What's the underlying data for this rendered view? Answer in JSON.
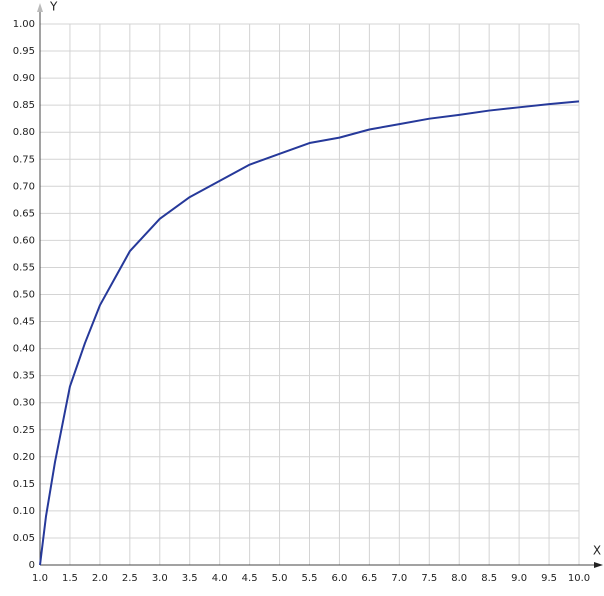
{
  "chart_data": {
    "type": "line",
    "x_label": "X",
    "y_label": "Y",
    "x": [
      1.0,
      1.1,
      1.25,
      1.5,
      1.75,
      2.0,
      2.25,
      2.5,
      3.0,
      3.5,
      4.0,
      4.5,
      5.0,
      5.5,
      6.0,
      6.5,
      7.0,
      7.5,
      8.0,
      8.5,
      9.0,
      9.5,
      10.0
    ],
    "values": [
      0,
      0.09,
      0.19,
      0.33,
      0.41,
      0.48,
      0.53,
      0.58,
      0.64,
      0.68,
      0.71,
      0.74,
      0.76,
      0.78,
      0.79,
      0.805,
      0.815,
      0.825,
      0.832,
      0.84,
      0.846,
      0.852,
      0.857
    ],
    "color": "#26399a",
    "grid": true,
    "xlim": [
      1.0,
      10.0
    ],
    "ylim": [
      0,
      1.0
    ],
    "xticks": [
      {
        "value": 1.0,
        "label": "1.0"
      },
      1.5,
      {
        "value": 2.0,
        "label": "2.0"
      },
      2.5,
      {
        "value": 3.0,
        "label": "3.0"
      },
      3.5,
      {
        "value": 4.0,
        "label": "4.0"
      },
      4.5,
      {
        "value": 5.0,
        "label": "5.0"
      },
      5.5,
      {
        "value": 6.0,
        "label": "6.0"
      },
      6.5,
      {
        "value": 7.0,
        "label": "7.0"
      },
      7.5,
      {
        "value": 8.0,
        "label": "8.0"
      },
      8.5,
      {
        "value": 9.0,
        "label": "9.0"
      },
      9.5,
      {
        "value": 10.0,
        "label": "10.0"
      }
    ],
    "yticks": [
      0,
      0.05,
      {
        "value": 0.1,
        "label": "0.10"
      },
      0.15,
      {
        "value": 0.2,
        "label": "0.20"
      },
      0.25,
      {
        "value": 0.3,
        "label": "0.30"
      },
      0.35,
      {
        "value": 0.4,
        "label": "0.40"
      },
      0.45,
      {
        "value": 0.5,
        "label": "0.50"
      },
      0.55,
      {
        "value": 0.6,
        "label": "0.60"
      },
      0.65,
      {
        "value": 0.7,
        "label": "0.70"
      },
      0.75,
      {
        "value": 0.8,
        "label": "0.80"
      },
      0.85,
      {
        "value": 0.9,
        "label": "0.90"
      },
      0.95,
      {
        "value": 1.0,
        "label": "1.00"
      }
    ]
  }
}
